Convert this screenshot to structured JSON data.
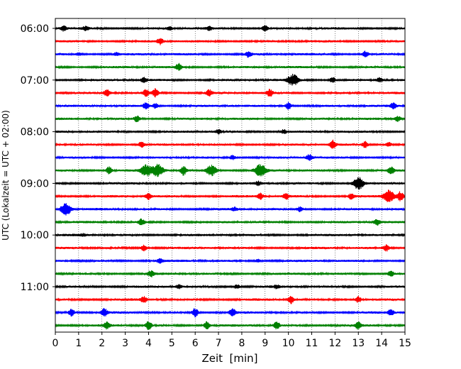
{
  "chart_data": {
    "type": "line",
    "title": "",
    "xlabel": "Zeit  [min]",
    "ylabel": "UTC (Lokalzeit = UTC + 02:00)",
    "xlim": [
      0,
      15
    ],
    "x_ticks": [
      0,
      1,
      2,
      3,
      4,
      5,
      6,
      7,
      8,
      9,
      10,
      11,
      12,
      13,
      14,
      15
    ],
    "grid": "vertical dotted lines at each minute",
    "legend": "none",
    "trace_interval_minutes": 15,
    "y_tick_labels": [
      "06:00",
      "07:00",
      "08:00",
      "09:00",
      "10:00",
      "11:00"
    ],
    "colors_cycle": [
      "#000000",
      "#ff0000",
      "#0000ff",
      "#008000"
    ],
    "traces": [
      {
        "start": "06:00",
        "color": "#000000",
        "events": [
          {
            "t": 0.35,
            "amp": 0.8
          },
          {
            "t": 1.3,
            "amp": 0.6
          },
          {
            "t": 4.9,
            "amp": 0.5
          },
          {
            "t": 6.6,
            "amp": 0.5
          },
          {
            "t": 9.0,
            "amp": 0.9
          }
        ]
      },
      {
        "start": "06:15",
        "color": "#ff0000",
        "events": [
          {
            "t": 4.5,
            "amp": 1.0
          }
        ]
      },
      {
        "start": "06:30",
        "color": "#0000ff",
        "events": [
          {
            "t": 1.0,
            "amp": 0.4
          },
          {
            "t": 2.6,
            "amp": 0.4
          },
          {
            "t": 8.3,
            "amp": 1.0
          },
          {
            "t": 13.3,
            "amp": 1.0
          }
        ]
      },
      {
        "start": "06:45",
        "color": "#008000",
        "events": [
          {
            "t": 5.3,
            "amp": 1.1
          }
        ]
      },
      {
        "start": "07:00",
        "color": "#000000",
        "events": [
          {
            "t": 3.8,
            "amp": 0.8
          },
          {
            "t": 10.2,
            "amp": 1.8
          },
          {
            "t": 11.9,
            "amp": 0.9
          },
          {
            "t": 13.9,
            "amp": 0.7
          }
        ]
      },
      {
        "start": "07:15",
        "color": "#ff0000",
        "events": [
          {
            "t": 2.2,
            "amp": 1.1
          },
          {
            "t": 3.9,
            "amp": 1.1
          },
          {
            "t": 4.3,
            "amp": 1.3
          },
          {
            "t": 6.6,
            "amp": 1.0
          },
          {
            "t": 9.2,
            "amp": 1.1
          }
        ]
      },
      {
        "start": "07:30",
        "color": "#0000ff",
        "events": [
          {
            "t": 3.9,
            "amp": 1.2
          },
          {
            "t": 4.3,
            "amp": 0.8
          },
          {
            "t": 10.0,
            "amp": 1.2
          },
          {
            "t": 14.5,
            "amp": 0.8
          }
        ]
      },
      {
        "start": "07:45",
        "color": "#008000",
        "events": [
          {
            "t": 3.5,
            "amp": 1.0
          },
          {
            "t": 14.7,
            "amp": 0.9
          }
        ]
      },
      {
        "start": "08:00",
        "color": "#000000",
        "events": [
          {
            "t": 7.0,
            "amp": 0.6
          },
          {
            "t": 9.8,
            "amp": 0.7
          }
        ]
      },
      {
        "start": "08:15",
        "color": "#ff0000",
        "events": [
          {
            "t": 3.7,
            "amp": 1.0
          },
          {
            "t": 11.9,
            "amp": 1.4
          },
          {
            "t": 13.3,
            "amp": 1.0
          },
          {
            "t": 14.3,
            "amp": 0.8
          }
        ]
      },
      {
        "start": "08:30",
        "color": "#0000ff",
        "events": [
          {
            "t": 7.6,
            "amp": 0.7
          },
          {
            "t": 10.9,
            "amp": 1.0
          }
        ]
      },
      {
        "start": "08:45",
        "color": "#008000",
        "events": [
          {
            "t": 2.3,
            "amp": 1.2
          },
          {
            "t": 3.9,
            "amp": 1.8
          },
          {
            "t": 4.4,
            "amp": 2.0
          },
          {
            "t": 5.5,
            "amp": 1.5
          },
          {
            "t": 6.7,
            "amp": 1.7
          },
          {
            "t": 8.8,
            "amp": 2.0
          },
          {
            "t": 14.4,
            "amp": 1.2
          }
        ]
      },
      {
        "start": "09:00",
        "color": "#000000",
        "events": [
          {
            "t": 8.7,
            "amp": 0.6
          },
          {
            "t": 13.0,
            "amp": 2.0
          }
        ]
      },
      {
        "start": "09:15",
        "color": "#ff0000",
        "events": [
          {
            "t": 4.0,
            "amp": 1.0
          },
          {
            "t": 8.8,
            "amp": 1.0
          },
          {
            "t": 9.9,
            "amp": 0.9
          },
          {
            "t": 12.7,
            "amp": 0.9
          },
          {
            "t": 14.3,
            "amp": 2.0
          },
          {
            "t": 14.8,
            "amp": 1.5
          }
        ]
      },
      {
        "start": "09:30",
        "color": "#0000ff",
        "events": [
          {
            "t": 0.45,
            "amp": 2.0
          },
          {
            "t": 7.7,
            "amp": 0.5
          },
          {
            "t": 10.5,
            "amp": 0.8
          }
        ]
      },
      {
        "start": "09:45",
        "color": "#008000",
        "events": [
          {
            "t": 3.7,
            "amp": 1.0
          },
          {
            "t": 13.8,
            "amp": 1.0
          }
        ]
      },
      {
        "start": "10:00",
        "color": "#000000",
        "events": [
          {
            "t": 1.2,
            "amp": 0.3
          }
        ]
      },
      {
        "start": "10:15",
        "color": "#ff0000",
        "events": [
          {
            "t": 3.8,
            "amp": 1.0
          },
          {
            "t": 14.2,
            "amp": 1.0
          }
        ]
      },
      {
        "start": "10:30",
        "color": "#0000ff",
        "events": [
          {
            "t": 4.5,
            "amp": 0.6
          },
          {
            "t": 8.7,
            "amp": 0.5
          }
        ]
      },
      {
        "start": "10:45",
        "color": "#008000",
        "events": [
          {
            "t": 4.1,
            "amp": 1.0
          },
          {
            "t": 14.4,
            "amp": 1.0
          }
        ]
      },
      {
        "start": "11:00",
        "color": "#000000",
        "events": [
          {
            "t": 5.3,
            "amp": 0.6
          },
          {
            "t": 7.8,
            "amp": 0.7
          },
          {
            "t": 9.5,
            "amp": 0.5
          }
        ]
      },
      {
        "start": "11:15",
        "color": "#ff0000",
        "events": [
          {
            "t": 3.8,
            "amp": 1.0
          },
          {
            "t": 10.1,
            "amp": 1.4
          },
          {
            "t": 13.0,
            "amp": 1.0
          }
        ]
      },
      {
        "start": "11:30",
        "color": "#0000ff",
        "events": [
          {
            "t": 0.7,
            "amp": 1.2
          },
          {
            "t": 2.1,
            "amp": 1.3
          },
          {
            "t": 6.0,
            "amp": 1.5
          },
          {
            "t": 7.6,
            "amp": 1.3
          },
          {
            "t": 14.4,
            "amp": 1.0
          }
        ]
      },
      {
        "start": "11:45",
        "color": "#008000",
        "events": [
          {
            "t": 2.2,
            "amp": 1.0
          },
          {
            "t": 4.0,
            "amp": 1.4
          },
          {
            "t": 6.5,
            "amp": 1.2
          },
          {
            "t": 9.5,
            "amp": 1.3
          },
          {
            "t": 13.0,
            "amp": 1.2
          }
        ]
      }
    ]
  }
}
